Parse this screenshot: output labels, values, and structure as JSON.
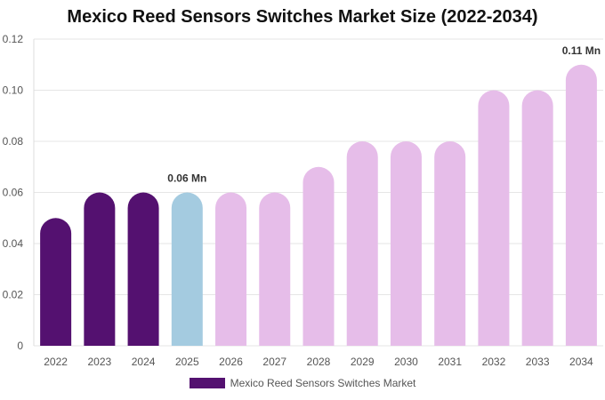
{
  "chart_data": {
    "type": "bar",
    "title": "Mexico Reed Sensors Switches Market Size (2022-2034)",
    "categories": [
      "2022",
      "2023",
      "2024",
      "2025",
      "2026",
      "2027",
      "2028",
      "2029",
      "2030",
      "2031",
      "2032",
      "2033",
      "2034"
    ],
    "series": [
      {
        "name": "Mexico Reed Sensors Switches Market",
        "values": [
          0.05,
          0.06,
          0.06,
          0.06,
          0.06,
          0.06,
          0.07,
          0.08,
          0.08,
          0.08,
          0.1,
          0.1,
          0.11
        ]
      }
    ],
    "bar_colors": [
      "#541170",
      "#541170",
      "#541170",
      "#a4cbe0",
      "#e6bde9",
      "#e6bde9",
      "#e6bde9",
      "#e6bde9",
      "#e6bde9",
      "#e6bde9",
      "#e6bde9",
      "#e6bde9",
      "#e6bde9"
    ],
    "legend_color": "#541170",
    "y_ticks": [
      "0",
      "0.02",
      "0.04",
      "0.06",
      "0.08",
      "0.10",
      "0.12"
    ],
    "ylim": [
      0,
      0.12
    ],
    "annotations": [
      {
        "category": "2025",
        "text": "0.06 Mn"
      },
      {
        "category": "2034",
        "text": "0.11 Mn"
      }
    ],
    "grid": true,
    "legend_position": "bottom"
  }
}
